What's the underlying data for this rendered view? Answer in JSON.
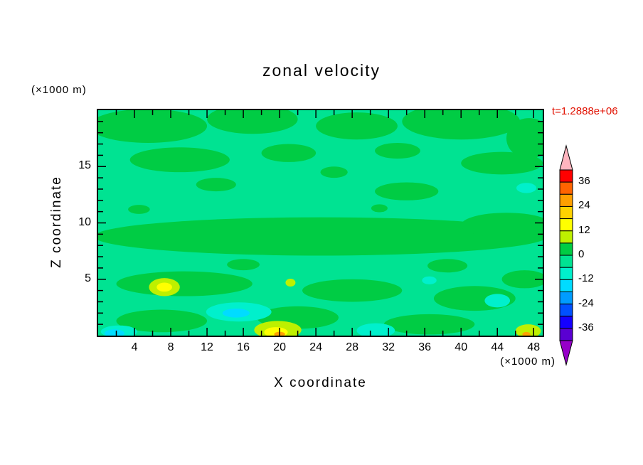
{
  "chart_data": {
    "type": "contour",
    "title": "zonal velocity",
    "xlabel": "X coordinate",
    "ylabel": "Z coordinate",
    "x_unit_label": "(×1000 m)",
    "y_unit_label": "(×1000 m)",
    "time_label": "t=1.2888e+06",
    "time_label_color": "#e11000",
    "frame_color": "#000000",
    "xlim": [
      0,
      49
    ],
    "ylim": [
      0,
      20
    ],
    "x_ticks": [
      4,
      8,
      12,
      16,
      20,
      24,
      28,
      32,
      36,
      40,
      44,
      48
    ],
    "x_minor_step": 2,
    "y_ticks": [
      5,
      10,
      15
    ],
    "y_minor_step": 1,
    "contour_interval": 6,
    "colorbar": {
      "max": 42,
      "min": -42,
      "label_levels": [
        36,
        24,
        12,
        0,
        -12,
        -24,
        -36
      ],
      "over_color": "#FFB4BE",
      "under_color": "#9600C8",
      "segments": [
        {
          "value_range": "36..42",
          "color": "#FF0000"
        },
        {
          "value_range": "30..36",
          "color": "#FF6400"
        },
        {
          "value_range": "24..30",
          "color": "#FFA000"
        },
        {
          "value_range": "18..24",
          "color": "#FFD200"
        },
        {
          "value_range": "12..18",
          "color": "#FFFF00"
        },
        {
          "value_range": "6..12",
          "color": "#BEF000"
        },
        {
          "value_range": "0..6",
          "color": "#00CC44"
        },
        {
          "value_range": "-6..0",
          "color": "#00E392"
        },
        {
          "value_range": "-12..-6",
          "color": "#00F0CC"
        },
        {
          "value_range": "-18..-12",
          "color": "#00DCFF"
        },
        {
          "value_range": "-24..-18",
          "color": "#009CFF"
        },
        {
          "value_range": "-30..-24",
          "color": "#0050FF"
        },
        {
          "value_range": "-36..-30",
          "color": "#1400FF"
        },
        {
          "value_range": "-42..-36",
          "color": "#5A00D2"
        }
      ]
    },
    "palette": {
      "base": "#00E392",
      "0..6": "#00CC44",
      "6..12": "#BEF000",
      "12..18": "#FFFF00",
      "24..30": "#FFA000",
      "-12..-6": "#00F0CC",
      "-18..-12": "#00DCFF"
    },
    "field_summary": "Zonal velocity field mostly between -6 and 6 m/s (greens); weak positive patches (yellow-green/yellow, up to ~24) near the bottom around x=7 z=4, x=20 z=0 and x=47 z=0; weak negative patches (turquoise/cyan, down to ~-18) near x=15 z=2, x=30 z=0, x=44 z=3, x=2 z=0 and x=47 z=13.",
    "field_regions": [
      {
        "level": "0..6",
        "x": 5.5,
        "z": 18.6,
        "rx": 6.5,
        "rz": 1.5
      },
      {
        "level": "0..6",
        "x": 17,
        "z": 19.2,
        "rx": 5,
        "rz": 1.3
      },
      {
        "level": "0..6",
        "x": 28.5,
        "z": 18.6,
        "rx": 4.5,
        "rz": 1.2
      },
      {
        "level": "0..6",
        "x": 40,
        "z": 19.0,
        "rx": 6.5,
        "rz": 1.6
      },
      {
        "level": "0..6",
        "x": 47.5,
        "z": 17.5,
        "rx": 2.5,
        "rz": 1.8
      },
      {
        "level": "0..6",
        "x": 9,
        "z": 15.6,
        "rx": 5.5,
        "rz": 1.1
      },
      {
        "level": "0..6",
        "x": 21,
        "z": 16.2,
        "rx": 3,
        "rz": 0.8
      },
      {
        "level": "0..6",
        "x": 33,
        "z": 16.4,
        "rx": 2.5,
        "rz": 0.7
      },
      {
        "level": "0..6",
        "x": 44.5,
        "z": 15.3,
        "rx": 4.5,
        "rz": 1.0
      },
      {
        "level": "0..6",
        "x": 13,
        "z": 13.4,
        "rx": 2.2,
        "rz": 0.6
      },
      {
        "level": "0..6",
        "x": 34,
        "z": 12.8,
        "rx": 3.5,
        "rz": 0.8
      },
      {
        "level": "0..6",
        "x": 4.5,
        "z": 11.2,
        "rx": 1.2,
        "rz": 0.4
      },
      {
        "level": "0..6",
        "x": 31,
        "z": 11.3,
        "rx": 0.9,
        "rz": 0.35
      },
      {
        "level": "0..6",
        "x": 26,
        "z": 14.5,
        "rx": 1.5,
        "rz": 0.5
      },
      {
        "level": "0..6",
        "x": 24.5,
        "z": 8.8,
        "rx": 25,
        "rz": 1.7
      },
      {
        "level": "0..6",
        "x": 45,
        "z": 9.8,
        "rx": 5,
        "rz": 1.1
      },
      {
        "level": "0..6",
        "x": 16,
        "z": 6.3,
        "rx": 1.8,
        "rz": 0.5
      },
      {
        "level": "0..6",
        "x": 38.5,
        "z": 6.2,
        "rx": 2.2,
        "rz": 0.6
      },
      {
        "level": "0..6",
        "x": 9.5,
        "z": 4.6,
        "rx": 7.5,
        "rz": 1.1
      },
      {
        "level": "0..6",
        "x": 28,
        "z": 4.0,
        "rx": 5.5,
        "rz": 1.0
      },
      {
        "level": "0..6",
        "x": 41.5,
        "z": 3.3,
        "rx": 4.5,
        "rz": 1.1
      },
      {
        "level": "0..6",
        "x": 47,
        "z": 5.0,
        "rx": 2.5,
        "rz": 0.8
      },
      {
        "level": "0..6",
        "x": 7,
        "z": 1.3,
        "rx": 5,
        "rz": 1.0
      },
      {
        "level": "0..6",
        "x": 22,
        "z": 1.6,
        "rx": 4.5,
        "rz": 1.0
      },
      {
        "level": "0..6",
        "x": 36.5,
        "z": 1.0,
        "rx": 5,
        "rz": 0.9
      },
      {
        "level": "-12..-6",
        "x": 15.5,
        "z": 2.1,
        "rx": 3.6,
        "rz": 0.85
      },
      {
        "level": "-12..-6",
        "x": 30.6,
        "z": 0.45,
        "rx": 2.1,
        "rz": 0.65
      },
      {
        "level": "-12..-6",
        "x": 44,
        "z": 3.1,
        "rx": 1.4,
        "rz": 0.6
      },
      {
        "level": "-12..-6",
        "x": 2.3,
        "z": 0.35,
        "rx": 2.0,
        "rz": 0.55
      },
      {
        "level": "-12..-6",
        "x": 47.2,
        "z": 13.1,
        "rx": 1.1,
        "rz": 0.45
      },
      {
        "level": "-12..-6",
        "x": 36.5,
        "z": 4.9,
        "rx": 0.8,
        "rz": 0.35
      },
      {
        "level": "-18..-12",
        "x": 15.2,
        "z": 2.0,
        "rx": 1.5,
        "rz": 0.4
      },
      {
        "level": "-18..-12",
        "x": 1.8,
        "z": 0.2,
        "rx": 1.1,
        "rz": 0.35
      },
      {
        "level": "6..12",
        "x": 7.3,
        "z": 4.3,
        "rx": 1.7,
        "rz": 0.8
      },
      {
        "level": "6..12",
        "x": 19.8,
        "z": 0.5,
        "rx": 2.6,
        "rz": 0.8
      },
      {
        "level": "6..12",
        "x": 21.2,
        "z": 4.7,
        "rx": 0.55,
        "rz": 0.35
      },
      {
        "level": "6..12",
        "x": 47.4,
        "z": 0.4,
        "rx": 1.4,
        "rz": 0.6
      },
      {
        "level": "12..18",
        "x": 7.3,
        "z": 4.3,
        "rx": 0.85,
        "rz": 0.4
      },
      {
        "level": "12..18",
        "x": 19.6,
        "z": 0.3,
        "rx": 1.3,
        "rz": 0.45
      },
      {
        "level": "24..30",
        "x": 20.0,
        "z": 0.12,
        "rx": 0.6,
        "rz": 0.22
      },
      {
        "level": "24..30",
        "x": 47.2,
        "z": 0.12,
        "rx": 0.45,
        "rz": 0.2
      }
    ]
  }
}
